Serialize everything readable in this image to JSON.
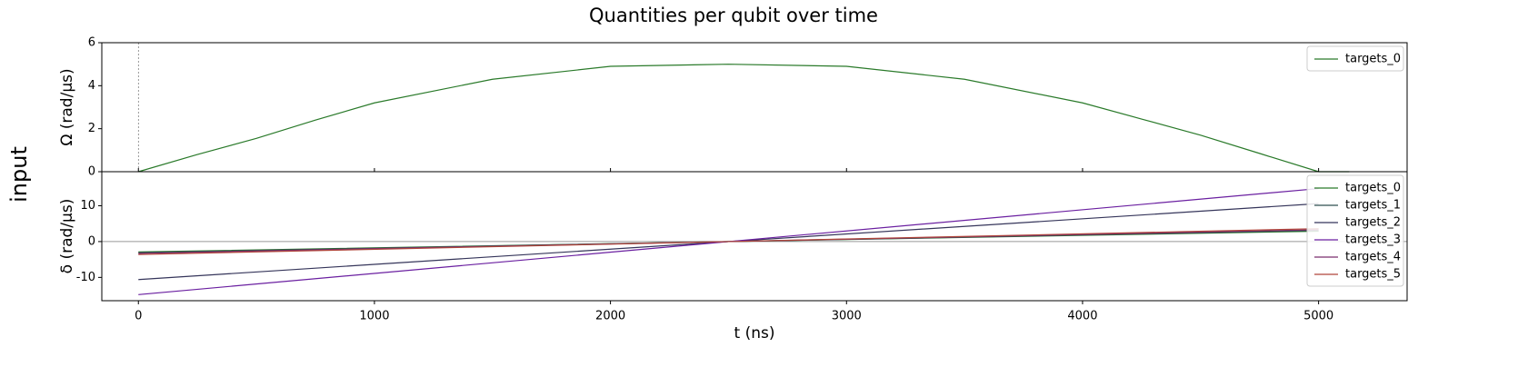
{
  "title": "Quantities per qubit over time",
  "row_label": "input",
  "chart_data": [
    {
      "type": "line",
      "y_label": "Ω (rad/µs)",
      "xlim": [
        -155,
        5375
      ],
      "ylim": [
        0,
        6
      ],
      "yticks": [
        0,
        2,
        4,
        6
      ],
      "legend": "upper right",
      "x": [
        0,
        250,
        500,
        750,
        1000,
        1500,
        2000,
        2500,
        3000,
        3500,
        4000,
        4250,
        4500,
        4750,
        5000,
        5130
      ],
      "series": [
        {
          "name": "targets_0",
          "color": "#2a7a2a",
          "values": [
            0,
            0.8,
            1.55,
            2.4,
            3.2,
            4.3,
            4.9,
            5.0,
            4.9,
            4.3,
            3.2,
            2.45,
            1.7,
            0.85,
            0,
            0
          ]
        }
      ]
    },
    {
      "type": "line",
      "y_label": "δ (rad/µs)",
      "x_label": "t (ns)",
      "xlim": [
        -155,
        5375
      ],
      "xticks": [
        0,
        1000,
        2000,
        3000,
        4000,
        5000
      ],
      "ylim": [
        -16.5,
        19.5
      ],
      "yticks": [
        -10,
        0,
        10
      ],
      "legend": "upper right",
      "x": [
        0,
        2500,
        5000
      ],
      "series": [
        {
          "name": "targets_0",
          "color": "#2a7a2a",
          "values": [
            -2.9,
            0,
            2.9
          ]
        },
        {
          "name": "targets_1",
          "color": "#2f4f4f",
          "values": [
            -3.1,
            0,
            3.1
          ]
        },
        {
          "name": "targets_2",
          "color": "#35355a",
          "values": [
            -10.6,
            0,
            10.6
          ]
        },
        {
          "name": "targets_3",
          "color": "#6a1fa0",
          "values": [
            -14.8,
            0,
            14.8
          ]
        },
        {
          "name": "targets_4",
          "color": "#7a2d6e",
          "values": [
            -3.3,
            0,
            3.3
          ]
        },
        {
          "name": "targets_5",
          "color": "#b0453a",
          "values": [
            -3.6,
            0,
            3.6
          ]
        }
      ]
    }
  ]
}
